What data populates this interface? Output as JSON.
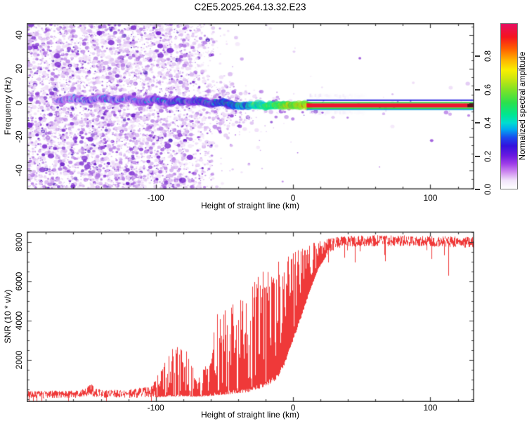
{
  "page": {
    "title": "C2E5.2025.264.13.32.E23"
  },
  "chart_data": [
    {
      "id": "spectrogram",
      "type": "heatmap",
      "title": "C2E5.2025.264.13.32.E23",
      "xlabel": "Height of straight line (km)",
      "ylabel": "Frequency (Hz)",
      "xlim": [
        -194,
        132
      ],
      "ylim": [
        -51,
        47
      ],
      "xticks": {
        "major": [
          -100,
          0,
          100
        ],
        "minor_step": 20
      },
      "yticks": {
        "major": [
          -40,
          -20,
          0,
          20,
          40
        ],
        "minor_step": 5
      },
      "colorbar": {
        "label": "Normalized spectral amplitude",
        "tick_labels": [
          "0.0",
          "0.2",
          "0.4",
          "0.6",
          "0.8"
        ],
        "tick_values": [
          0.0,
          0.2,
          0.4,
          0.6,
          0.8
        ],
        "stops": [
          [
            0.0,
            "#ffffff"
          ],
          [
            0.05,
            "#f1e4fa"
          ],
          [
            0.1,
            "#cf8df0"
          ],
          [
            0.15,
            "#a040e8"
          ],
          [
            0.2,
            "#6b1ae0"
          ],
          [
            0.26,
            "#3312dd"
          ],
          [
            0.31,
            "#1b49ee"
          ],
          [
            0.36,
            "#00aaf0"
          ],
          [
            0.4,
            "#00ddd0"
          ],
          [
            0.45,
            "#00e690"
          ],
          [
            0.52,
            "#2ae04e"
          ],
          [
            0.6,
            "#7fe226"
          ],
          [
            0.67,
            "#cfe70e"
          ],
          [
            0.72,
            "#f8ef00"
          ],
          [
            0.78,
            "#ffb400"
          ],
          [
            0.85,
            "#ff5d00"
          ],
          [
            0.92,
            "#f5141e"
          ],
          [
            1.0,
            "#e60e62"
          ]
        ]
      },
      "noise": {
        "seed": 42,
        "attempts": 15000,
        "full_height_until_km": -58,
        "density_profile": [
          [
            -194,
            0.92
          ],
          [
            -93,
            0.92
          ],
          [
            -58,
            0.4
          ],
          [
            -28,
            0.1
          ],
          [
            14,
            0.012
          ]
        ],
        "palette": [
          [
            "#eedcf8",
            0.4
          ],
          [
            "#d7b4f0",
            0.27
          ],
          [
            "#b77fe6",
            0.18
          ],
          [
            "#9246d8",
            0.09
          ],
          [
            "#6c1fc8",
            0.045
          ],
          [
            "#4312b8",
            0.015
          ]
        ],
        "dark_blobs": 40
      },
      "trace": {
        "points": [
          [
            -172,
            1.5,
            0.3
          ],
          [
            -160,
            2.5,
            0.32
          ],
          [
            -150,
            1.0,
            0.34
          ],
          [
            -140,
            3.0,
            0.33
          ],
          [
            -130,
            1.5,
            0.35
          ],
          [
            -120,
            2.5,
            0.34
          ],
          [
            -110,
            0.8,
            0.36
          ],
          [
            -100,
            2.2,
            0.4
          ],
          [
            -92,
            0.0,
            0.38
          ],
          [
            -84,
            1.8,
            0.42
          ],
          [
            -76,
            0.5,
            0.4
          ],
          [
            -68,
            1.2,
            0.45
          ],
          [
            -60,
            -0.5,
            0.42
          ],
          [
            -52,
            0.5,
            0.48
          ],
          [
            -44,
            -1.2,
            0.5
          ],
          [
            -36,
            -1.8,
            0.55
          ],
          [
            -28,
            -1.0,
            0.6
          ],
          [
            -20,
            -1.8,
            0.68
          ],
          [
            -14,
            -1.2,
            0.72
          ],
          [
            -8,
            -1.6,
            0.75
          ],
          [
            0,
            -1.4,
            0.78
          ],
          [
            6,
            -1.5,
            0.8
          ],
          [
            12,
            -1.5,
            0.82
          ]
        ]
      },
      "stripe": {
        "start_km": 12,
        "bands": [
          [
            2.0,
            1.2,
            "#2a25e0"
          ],
          [
            0.5,
            -0.3,
            "#2ad435"
          ],
          [
            -0.3,
            -2.8,
            "#ee1430"
          ],
          [
            -2.8,
            -3.6,
            "#2ad435"
          ],
          [
            -3.6,
            -4.3,
            "#1b9de0"
          ]
        ],
        "fuzz": {
          "until_km": 55,
          "color": "#d9c2f2"
        },
        "end_blob": {
          "x0_km": 127,
          "x1_km": 132.5,
          "f_top": -0.6,
          "f_bot": -2.5,
          "color": "#55101a"
        }
      }
    },
    {
      "id": "snr",
      "type": "line",
      "color": "#ee2e2e",
      "xlabel": "Height of straight line (km)",
      "ylabel": "SNR (10 * v/v)",
      "xlim": [
        -194,
        132
      ],
      "ylim": [
        -150,
        8550
      ],
      "xticks": {
        "major": [
          -100,
          0,
          100
        ],
        "minor_step": 20
      },
      "yticks": {
        "major": [
          2000,
          4000,
          6000,
          8000
        ],
        "minor_step": 500
      },
      "envelope": [
        [
          -194,
          60,
          420,
          2.0
        ],
        [
          -155,
          60,
          450,
          2.0
        ],
        [
          -148,
          150,
          800,
          1.6
        ],
        [
          -140,
          60,
          450,
          2.0
        ],
        [
          -120,
          60,
          500,
          2.2
        ],
        [
          -103,
          80,
          700,
          2.0
        ],
        [
          -95,
          100,
          1700,
          2.6
        ],
        [
          -86,
          150,
          2850,
          2.8
        ],
        [
          -78,
          150,
          2500,
          2.8
        ],
        [
          -70,
          120,
          1100,
          2.2
        ],
        [
          -62,
          150,
          2200,
          2.6
        ],
        [
          -55,
          200,
          4600,
          2.6
        ],
        [
          -47,
          250,
          4900,
          2.4
        ],
        [
          -40,
          300,
          5100,
          2.2
        ],
        [
          -33,
          350,
          5600,
          2.2
        ],
        [
          -26,
          500,
          6300,
          2.0
        ],
        [
          -19,
          700,
          6800,
          1.8
        ],
        [
          -12,
          1000,
          7100,
          1.6
        ],
        [
          -6,
          1800,
          7300,
          1.3
        ],
        [
          0,
          3000,
          7500,
          1.0
        ],
        [
          6,
          4200,
          7700,
          0.8
        ],
        [
          12,
          5500,
          7900,
          0.7
        ],
        [
          18,
          6600,
          8050,
          0.6
        ],
        [
          25,
          7400,
          8200,
          0.5
        ],
        [
          35,
          7750,
          8300,
          0.5
        ],
        [
          60,
          7800,
          8380,
          0.5
        ],
        [
          90,
          7800,
          8350,
          0.5
        ],
        [
          113,
          7750,
          8300,
          0.5
        ],
        [
          132,
          7700,
          8300,
          0.5
        ]
      ],
      "dips": [
        [
          113,
          6300
        ],
        [
          101,
          7150
        ]
      ]
    }
  ]
}
